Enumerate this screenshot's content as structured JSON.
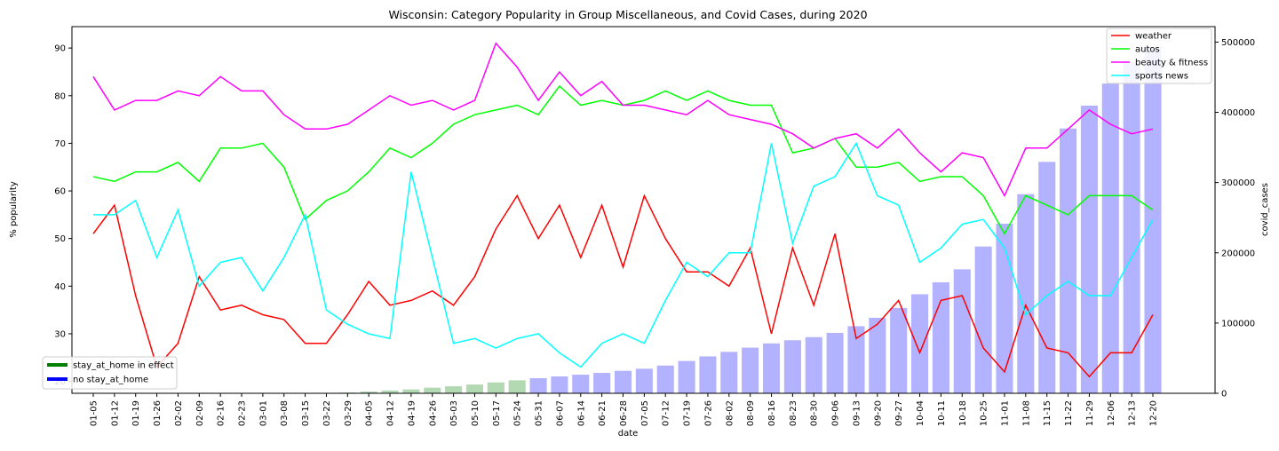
{
  "chart_data": {
    "type": "line+bar",
    "title": "Wisconsin: Category Popularity in Group Miscellaneous, and Covid Cases, during 2020",
    "xlabel": "date",
    "ylabel_left": "% popularity",
    "ylabel_right": "covid_cases",
    "ylim_left": [
      17.5,
      94.5
    ],
    "ylim_right": [
      0,
      522000
    ],
    "yticks_left": [
      20,
      30,
      40,
      50,
      60,
      70,
      80,
      90
    ],
    "yticks_right": [
      0,
      100000,
      200000,
      300000,
      400000,
      500000
    ],
    "grid": false,
    "x": [
      "01-05",
      "01-12",
      "01-19",
      "01-26",
      "02-02",
      "02-09",
      "02-16",
      "02-23",
      "03-01",
      "03-08",
      "03-15",
      "03-22",
      "03-29",
      "04-05",
      "04-12",
      "04-19",
      "04-26",
      "05-03",
      "05-10",
      "05-17",
      "05-24",
      "05-31",
      "06-07",
      "06-14",
      "06-21",
      "06-28",
      "07-05",
      "07-12",
      "07-19",
      "07-26",
      "08-02",
      "08-09",
      "08-16",
      "08-23",
      "08-30",
      "09-06",
      "09-13",
      "09-20",
      "09-27",
      "10-04",
      "10-11",
      "10-18",
      "10-25",
      "11-01",
      "11-08",
      "11-15",
      "11-22",
      "11-29",
      "12-06",
      "12-13",
      "12-20"
    ],
    "series": [
      {
        "name": "weather",
        "color": "#ff0000",
        "values": [
          51,
          57,
          38,
          23,
          28,
          42,
          35,
          36,
          34,
          33,
          28,
          28,
          34,
          41,
          36,
          37,
          39,
          36,
          42,
          52,
          59,
          50,
          57,
          46,
          57,
          44,
          59,
          50,
          43,
          43,
          40,
          48,
          30,
          48,
          36,
          51,
          29,
          32,
          37,
          26,
          37,
          38,
          27,
          22,
          36,
          27,
          26,
          21,
          26,
          26,
          34
        ]
      },
      {
        "name": "autos",
        "color": "#00ff00",
        "values": [
          63,
          62,
          64,
          64,
          66,
          62,
          69,
          69,
          70,
          65,
          54,
          58,
          60,
          64,
          69,
          67,
          70,
          74,
          76,
          77,
          78,
          76,
          82,
          78,
          79,
          78,
          79,
          81,
          79,
          81,
          79,
          78,
          78,
          68,
          69,
          71,
          65,
          65,
          66,
          62,
          63,
          63,
          59,
          51,
          59,
          57,
          55,
          59,
          59,
          59,
          56
        ]
      },
      {
        "name": "beauty & fitness",
        "color": "#ff00ff",
        "values": [
          84,
          77,
          79,
          79,
          81,
          80,
          84,
          81,
          81,
          76,
          73,
          73,
          74,
          77,
          80,
          78,
          79,
          77,
          79,
          91,
          86,
          79,
          85,
          80,
          83,
          78,
          78,
          77,
          76,
          79,
          76,
          75,
          74,
          72,
          69,
          71,
          72,
          69,
          73,
          68,
          64,
          68,
          67,
          59,
          69,
          69,
          73,
          77,
          74,
          72,
          73
        ]
      },
      {
        "name": "sports news",
        "color": "#00ffff",
        "values": [
          55,
          55,
          58,
          46,
          56,
          40,
          45,
          46,
          39,
          46,
          55,
          35,
          32,
          30,
          29,
          64,
          46,
          28,
          29,
          27,
          29,
          30,
          26,
          23,
          28,
          30,
          28,
          37,
          45,
          42,
          47,
          47,
          70,
          49,
          61,
          63,
          70,
          59,
          57,
          45,
          48,
          53,
          54,
          48,
          34,
          38,
          41,
          38,
          38,
          46,
          54
        ]
      }
    ],
    "bars": {
      "name": "covid_cases",
      "values": [
        0,
        0,
        0,
        0,
        0,
        0,
        0,
        0,
        0,
        0,
        0,
        0,
        1000,
        2500,
        4000,
        5500,
        8000,
        10000,
        12500,
        15500,
        18500,
        21500,
        24000,
        26500,
        29000,
        32000,
        35000,
        39500,
        46000,
        52500,
        59000,
        65000,
        71000,
        75500,
        80000,
        86000,
        95500,
        107500,
        121500,
        141000,
        158000,
        176500,
        209000,
        241500,
        283500,
        329500,
        377000,
        409500,
        441000,
        471000,
        492000
      ],
      "color_stay_at_home": "#008000",
      "color_no_stay_at_home": "#0000ff",
      "stay_at_home": [
        true,
        true,
        true,
        true,
        true,
        true,
        true,
        true,
        true,
        true,
        true,
        true,
        true,
        true,
        true,
        true,
        true,
        true,
        true,
        true,
        true,
        false,
        false,
        false,
        false,
        false,
        false,
        false,
        false,
        false,
        false,
        false,
        false,
        false,
        false,
        false,
        false,
        false,
        false,
        false,
        false,
        false,
        false,
        false,
        false,
        false,
        false,
        false,
        false,
        false,
        false
      ]
    },
    "legend_lines": {
      "placement": "top-right",
      "entries": [
        "weather",
        "autos",
        "beauty & fitness",
        "sports news"
      ]
    },
    "legend_bars": {
      "placement": "bottom-left",
      "entries": [
        {
          "label": "stay_at_home in effect",
          "color": "#008000"
        },
        {
          "label": "no stay_at_home",
          "color": "#0000ff"
        }
      ]
    }
  }
}
